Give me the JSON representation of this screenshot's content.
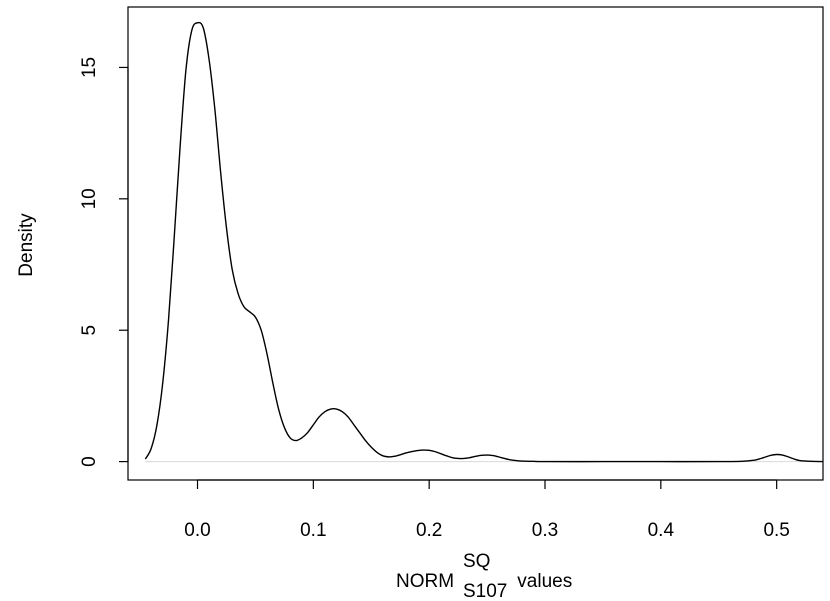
{
  "chart_data": {
    "type": "line",
    "xlabel": {
      "base": "NORM",
      "superscript": "SQ",
      "subscript": "S107",
      "suffix": " values"
    },
    "ylabel": "Density",
    "xlim": [
      -0.06,
      0.54
    ],
    "ylim": [
      -0.7,
      17.3
    ],
    "x_ticks": [
      0.0,
      0.1,
      0.2,
      0.3,
      0.4,
      0.5
    ],
    "x_tick_labels": [
      "0.0",
      "0.1",
      "0.2",
      "0.3",
      "0.4",
      "0.5"
    ],
    "y_ticks": [
      0,
      5,
      10,
      15
    ],
    "y_tick_labels": [
      "0",
      "5",
      "10",
      "15"
    ],
    "grid": false,
    "zero_line": true,
    "line_color": "#000000",
    "series": [
      {
        "x": [
          -0.045,
          -0.04,
          -0.035,
          -0.03,
          -0.025,
          -0.02,
          -0.015,
          -0.01,
          -0.005,
          0.0,
          0.005,
          0.01,
          0.015,
          0.02,
          0.025,
          0.03,
          0.035,
          0.04,
          0.045,
          0.05,
          0.055,
          0.06,
          0.065,
          0.07,
          0.075,
          0.08,
          0.085,
          0.09,
          0.095,
          0.1,
          0.105,
          0.11,
          0.115,
          0.12,
          0.125,
          0.13,
          0.135,
          0.14,
          0.145,
          0.15,
          0.155,
          0.16,
          0.165,
          0.17,
          0.175,
          0.18,
          0.185,
          0.19,
          0.195,
          0.2,
          0.205,
          0.21,
          0.215,
          0.22,
          0.225,
          0.23,
          0.235,
          0.24,
          0.245,
          0.25,
          0.255,
          0.26,
          0.265,
          0.27,
          0.275,
          0.28,
          0.29,
          0.3,
          0.35,
          0.4,
          0.45,
          0.47,
          0.48,
          0.485,
          0.49,
          0.495,
          0.5,
          0.505,
          0.51,
          0.515,
          0.52,
          0.53,
          0.54
        ],
        "y": [
          0.1,
          0.5,
          1.4,
          3.0,
          5.4,
          8.6,
          12.0,
          14.9,
          16.4,
          16.7,
          16.5,
          15.3,
          13.4,
          11.0,
          8.9,
          7.3,
          6.4,
          5.9,
          5.7,
          5.5,
          5.0,
          4.1,
          3.0,
          2.0,
          1.3,
          0.9,
          0.8,
          0.9,
          1.1,
          1.4,
          1.7,
          1.9,
          2.0,
          2.0,
          1.9,
          1.7,
          1.4,
          1.1,
          0.8,
          0.55,
          0.35,
          0.22,
          0.18,
          0.2,
          0.26,
          0.33,
          0.38,
          0.42,
          0.44,
          0.43,
          0.38,
          0.3,
          0.22,
          0.15,
          0.12,
          0.12,
          0.15,
          0.2,
          0.24,
          0.25,
          0.23,
          0.18,
          0.12,
          0.07,
          0.04,
          0.02,
          0.01,
          0.0,
          0.0,
          0.0,
          0.0,
          0.01,
          0.05,
          0.1,
          0.17,
          0.24,
          0.27,
          0.25,
          0.18,
          0.1,
          0.04,
          0.01,
          0.0
        ]
      }
    ]
  }
}
